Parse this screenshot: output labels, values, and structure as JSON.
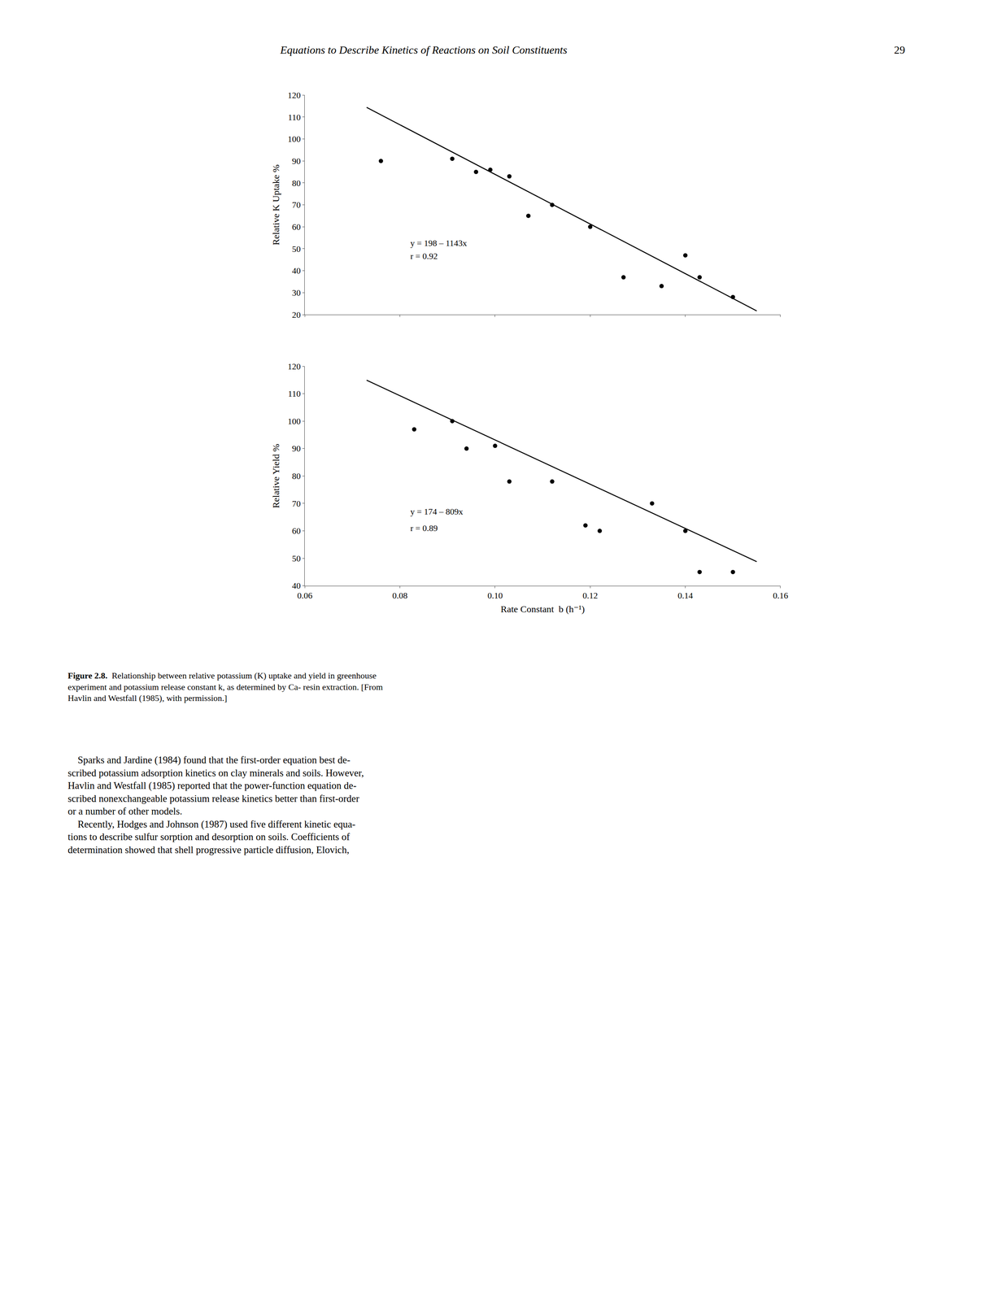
{
  "header_text": "Equations to Describe Kinetics of Reactions on Soil Constituents",
  "page_number": "29",
  "caption_bold": "Figure 2.8.",
  "caption_rest": "  Relationship between relative potassium (K) uptake and yield in greenhouse\nexperiment and potassium release constant k, as determined by Ca- resin extraction. [From\nHavlin and Westfall (1985), with permission.]",
  "body_text": [
    "    Sparks and Jardine (1984) found that the first-order equation best de-\nscribed potassium adsorption kinetics on clay minerals and soils. However,\nHavlin and Westfall (1985) reported that the power-function equation de-\nscribed nonexchangeable potassium release kinetics better than first-order\nor a number of other models.",
    "    Recently, Hodges and Johnson (1987) used five different kinetic equa-\ntions to describe sulfur sorption and desorption on soils. Coefficients of\ndetermination showed that shell progressive particle diffusion, Elovich,"
  ],
  "chart_data": [
    {
      "type": "scatter",
      "ylabel": "Relative K Uptake %",
      "xlim": [
        0.06,
        0.16
      ],
      "xticks": [
        0.06,
        0.08,
        0.1,
        0.12,
        0.14,
        0.16
      ],
      "ylim": [
        20,
        120
      ],
      "yticks": [
        20,
        30,
        40,
        50,
        60,
        70,
        80,
        90,
        100,
        110,
        120
      ],
      "grid": false,
      "tick_labels": "y",
      "series": [
        {
          "type": "scatter",
          "color": "#000000",
          "x": [
            0.076,
            0.091,
            0.096,
            0.099,
            0.103,
            0.107,
            0.112,
            0.12,
            0.127,
            0.135,
            0.14,
            0.143,
            0.15
          ],
          "values": [
            90,
            91,
            85,
            86,
            83,
            65,
            70,
            60,
            37,
            33,
            47,
            37,
            28
          ]
        },
        {
          "type": "line",
          "color": "#000000",
          "x": [
            0.073,
            0.155
          ],
          "values": [
            114.4,
            21.7
          ]
        }
      ],
      "annotations": [
        {
          "text": "y = 198 – 1143x",
          "x": 0.082,
          "y": 50
        },
        {
          "text": "r = 0.92",
          "x": 0.082,
          "y": 44
        }
      ]
    },
    {
      "type": "scatter",
      "ylabel": "Relative Yield %",
      "xlabel": "Rate Constant  b (h⁻¹)",
      "xlim": [
        0.06,
        0.16
      ],
      "xticks": [
        0.06,
        0.08,
        {
          "value": 0.1,
          "label": "0.10"
        },
        0.12,
        0.14,
        0.16
      ],
      "ylim": [
        40,
        120
      ],
      "yticks": [
        40,
        50,
        60,
        70,
        80,
        90,
        100,
        110,
        120
      ],
      "grid": false,
      "series": [
        {
          "type": "scatter",
          "color": "#000000",
          "x": [
            0.083,
            0.091,
            0.094,
            0.1,
            0.103,
            0.112,
            0.119,
            0.122,
            0.133,
            0.14,
            0.143,
            0.15
          ],
          "values": [
            97,
            100,
            90,
            91,
            78,
            78,
            62,
            60,
            70,
            60,
            45,
            45
          ]
        },
        {
          "type": "line",
          "color": "#000000",
          "x": [
            0.073,
            0.155
          ],
          "values": [
            114.9,
            48.8
          ]
        }
      ],
      "annotations": [
        {
          "text": "y = 174 – 809x",
          "x": 0.082,
          "y": 65
        },
        {
          "text": "r = 0.89",
          "x": 0.082,
          "y": 59
        }
      ]
    }
  ]
}
